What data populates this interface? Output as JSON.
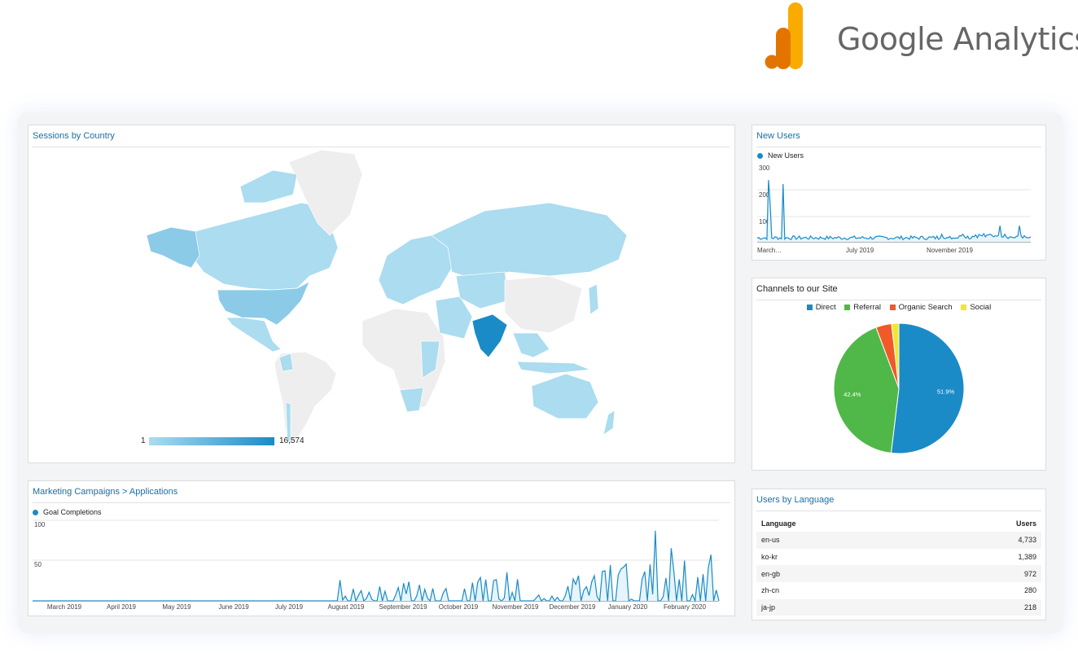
{
  "logo": {
    "text": "Google Analytics",
    "colors": [
      "#f9ab00",
      "#e37400"
    ]
  },
  "map_card": {
    "title": "Sessions by Country",
    "scale_min": "1",
    "scale_max": "16,574",
    "colors": {
      "low": "#a9dcf0",
      "high": "#1a8bc7",
      "none": "#eeeeee"
    },
    "highlight_country": "India"
  },
  "new_users_card": {
    "title": "New Users",
    "legend": "New Users",
    "y_ticks": [
      "300",
      "200",
      "100"
    ],
    "x_ticks": [
      "March…",
      "July 2019",
      "November 2019"
    ]
  },
  "channels_card": {
    "title": "Channels to our Site",
    "legend": [
      {
        "label": "Direct",
        "color": "#1a8bc7"
      },
      {
        "label": "Referral",
        "color": "#50b848"
      },
      {
        "label": "Organic Search",
        "color": "#f05a28"
      },
      {
        "label": "Social",
        "color": "#f2e533"
      }
    ],
    "chart_data": {
      "type": "pie",
      "labels": [
        "Direct",
        "Referral",
        "Organic Search",
        "Social"
      ],
      "values": [
        51.9,
        42.4,
        3.9,
        1.8
      ],
      "data_labels": [
        "51.9%",
        "42.4%",
        "",
        ""
      ]
    }
  },
  "campaigns_card": {
    "title": "Marketing Campaigns > Applications",
    "legend": "Goal Completions",
    "y_ticks": [
      "100",
      "50"
    ],
    "x_ticks": [
      "March 2019",
      "April 2019",
      "May 2019",
      "June 2019",
      "July 2019",
      "August 2019",
      "September 2019",
      "October 2019",
      "November 2019",
      "December 2019",
      "January 2020",
      "February 2020"
    ]
  },
  "language_card": {
    "title": "Users by Language",
    "columns": [
      "Language",
      "Users"
    ],
    "rows": [
      {
        "language": "en-us",
        "users": "4,733"
      },
      {
        "language": "ko-kr",
        "users": "1,389"
      },
      {
        "language": "en-gb",
        "users": "972"
      },
      {
        "language": "zh-cn",
        "users": "280"
      },
      {
        "language": "ja-jp",
        "users": "218"
      }
    ]
  }
}
